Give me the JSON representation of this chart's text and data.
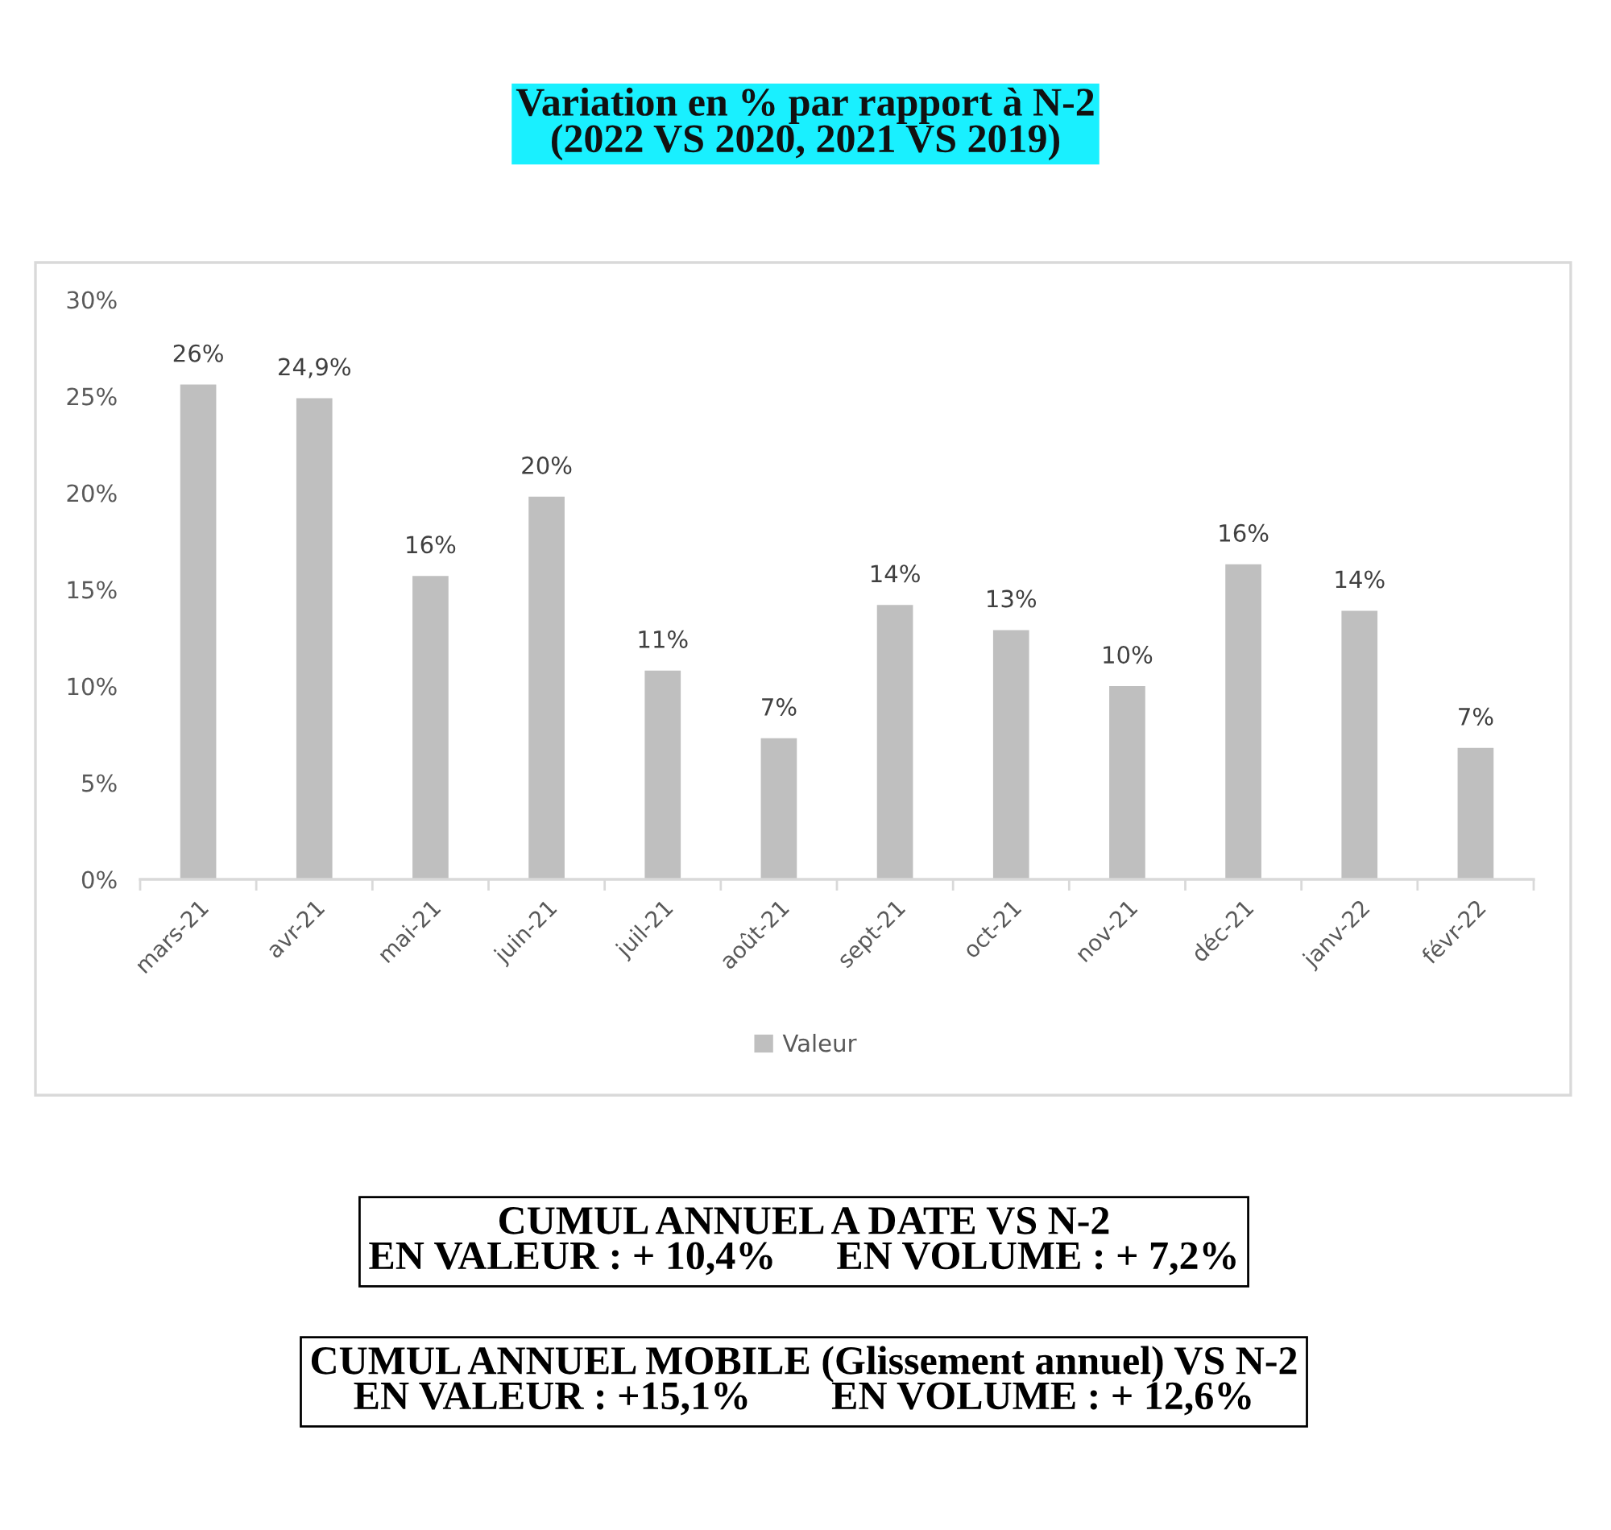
{
  "chart_data": {
    "type": "bar",
    "title": "Variation en % par rapport à N-2\n(2022 VS 2020, 2021 VS 2019)",
    "categories": [
      "mars-21",
      "avr-21",
      "mai-21",
      "juin-21",
      "juil-21",
      "août-21",
      "sept-21",
      "oct-21",
      "nov-21",
      "déc-21",
      "janv-22",
      "févr-22"
    ],
    "series": [
      {
        "name": "Valeur",
        "color": "#bfbfbf",
        "values": [
          25.6,
          24.9,
          15.7,
          19.8,
          10.8,
          7.3,
          14.2,
          12.9,
          10.0,
          16.3,
          13.9,
          6.8
        ],
        "value_labels": [
          "26%",
          "24,9%",
          "16%",
          "20%",
          "11%",
          "7%",
          "14%",
          "13%",
          "10%",
          "16%",
          "14%",
          "7%"
        ]
      }
    ],
    "ylim": [
      0,
      30
    ],
    "yticks": [
      {
        "value": 0,
        "label": "0%"
      },
      {
        "value": 5,
        "label": "5%"
      },
      {
        "value": 10,
        "label": "10%"
      },
      {
        "value": 15,
        "label": "15%"
      },
      {
        "value": 20,
        "label": "20%"
      },
      {
        "value": 25,
        "label": "25%"
      },
      {
        "value": 30,
        "label": "30%"
      }
    ],
    "grid": false,
    "legend": "bottom",
    "annotations": [
      "CUMUL ANNUEL A DATE VS N-2\nEN VALEUR : + 10,4%      EN VOLUME : + 7,2%",
      "CUMUL ANNUEL MOBILE (Glissement annuel) VS N-2\nEN VALEUR : +15,1%        EN VOLUME : + 12,6%"
    ]
  }
}
